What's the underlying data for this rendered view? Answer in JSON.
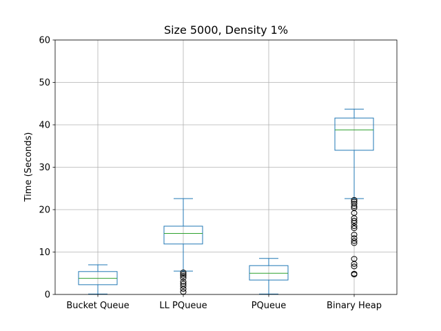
{
  "chart_data": {
    "type": "box",
    "title": "Size 5000, Density 1%",
    "xlabel": "",
    "ylabel": "Time (Seconds)",
    "ylim": [
      0,
      60
    ],
    "yticks": [
      0,
      10,
      20,
      30,
      40,
      50,
      60
    ],
    "grid": true,
    "colors": {
      "box": "#1f77b4",
      "median": "#2ca02c",
      "grid": "#b0b0b0",
      "flier": "#000000"
    },
    "categories": [
      "Bucket Queue",
      "LL PQueue",
      "PQueue",
      "Binary Heap"
    ],
    "boxes": [
      {
        "name": "Bucket Queue",
        "whisker_low": 0.1,
        "q1": 2.3,
        "median": 3.8,
        "q3": 5.4,
        "whisker_high": 7.0,
        "outliers": []
      },
      {
        "name": "LL PQueue",
        "whisker_low": 5.5,
        "q1": 11.9,
        "median": 14.4,
        "q3": 16.1,
        "whisker_high": 22.6,
        "outliers": [
          5.2,
          4.8,
          4.4,
          3.9,
          3.0,
          2.5,
          2.0,
          1.3,
          0.6
        ]
      },
      {
        "name": "PQueue",
        "whisker_low": 0.1,
        "q1": 3.4,
        "median": 5.0,
        "q3": 6.8,
        "whisker_high": 8.5,
        "outliers": []
      },
      {
        "name": "Binary Heap",
        "whisker_low": 22.6,
        "q1": 34.0,
        "median": 38.8,
        "q3": 41.6,
        "whisker_high": 43.7,
        "outliers": [
          22.3,
          21.9,
          21.4,
          20.8,
          20.4,
          19.2,
          18.0,
          17.4,
          16.9,
          16.1,
          15.6,
          14.1,
          13.3,
          12.6,
          12.1,
          8.4,
          7.2,
          6.6,
          4.9,
          4.7
        ]
      }
    ]
  }
}
